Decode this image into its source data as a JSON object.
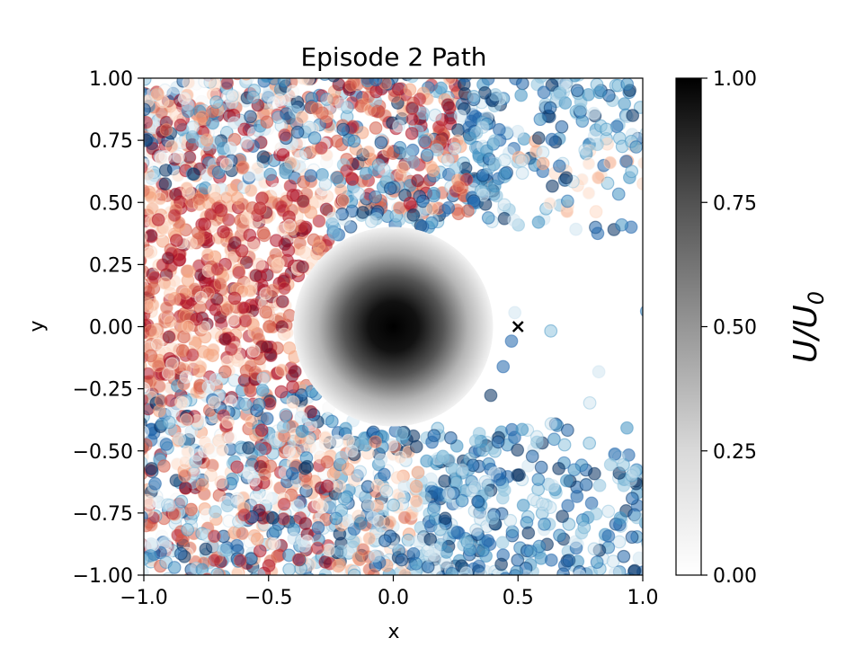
{
  "chart_data": {
    "type": "scatter",
    "title": "Episode 2 Path",
    "xlabel": "x",
    "ylabel": "y",
    "xlim": [
      -1.0,
      1.0
    ],
    "ylim": [
      -1.0,
      1.0
    ],
    "xticks": [
      "−1.0",
      "−0.5",
      "0.0",
      "0.5",
      "1.0"
    ],
    "yticks": [
      "−1.00",
      "−0.75",
      "−0.50",
      "−0.25",
      "0.00",
      "0.25",
      "0.50",
      "0.75",
      "1.00"
    ],
    "grid": false,
    "background_field": {
      "description": "grayscale radial field of U/U0, peak 1.0 at origin, masked outside radius ~0.4",
      "center": [
        0.0,
        0.0
      ],
      "radius": 0.4,
      "colormap": "Greys"
    },
    "target_marker": {
      "x": 0.5,
      "y": 0.0,
      "marker": "x",
      "color": "#000000"
    },
    "scatter": {
      "colormap": "RdBu",
      "alpha": 0.55,
      "exclusion_radius": 0.4,
      "sample_points": [
        {
          "x": -0.9,
          "y": 0.9,
          "c": 0.75
        },
        {
          "x": -0.6,
          "y": 0.3,
          "c": 0.05
        },
        {
          "x": -0.45,
          "y": 0.35,
          "c": 0.1
        },
        {
          "x": -0.95,
          "y": 0.0,
          "c": 0.15
        },
        {
          "x": -0.7,
          "y": -0.1,
          "c": 0.45
        },
        {
          "x": -0.5,
          "y": -0.3,
          "c": 0.9
        },
        {
          "x": 0.3,
          "y": 0.8,
          "c": 0.85
        },
        {
          "x": 0.6,
          "y": 0.65,
          "c": 0.3
        },
        {
          "x": 0.9,
          "y": 0.3,
          "c": 0.95
        },
        {
          "x": 0.3,
          "y": -0.6,
          "c": 0.85
        },
        {
          "x": 0.7,
          "y": -0.8,
          "c": 0.95
        },
        {
          "x": -0.3,
          "y": -0.8,
          "c": 0.3
        },
        {
          "x": 0.0,
          "y": -0.85,
          "c": 0.6
        },
        {
          "x": -0.2,
          "y": 0.65,
          "c": 0.2
        }
      ]
    },
    "colorbar": {
      "label": "U/U",
      "label_subscript": "0",
      "range": [
        0.0,
        1.0
      ],
      "ticks": [
        "0.00",
        "0.25",
        "0.50",
        "0.75",
        "1.00"
      ],
      "colormap": "Greys"
    }
  },
  "colors": {
    "rdbu": [
      "#67001f",
      "#b2182b",
      "#d6604d",
      "#f4a582",
      "#fddbc7",
      "#f7f7f7",
      "#d1e5f0",
      "#92c5de",
      "#4393c3",
      "#2166ac",
      "#053061"
    ],
    "axis": "#000000"
  }
}
